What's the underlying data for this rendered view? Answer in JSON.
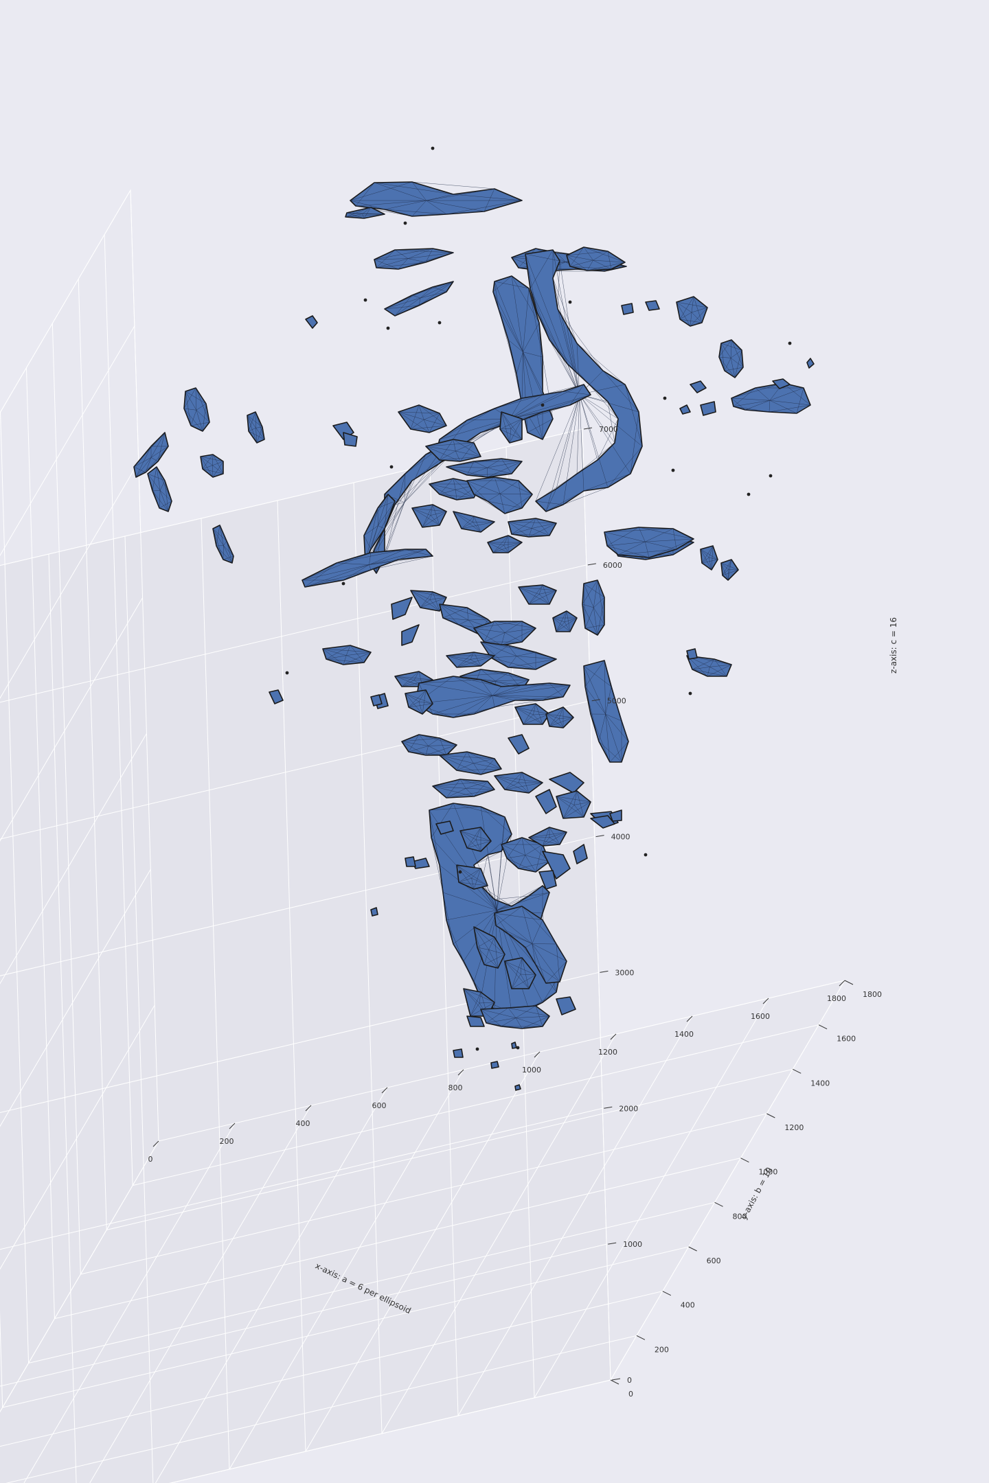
{
  "chart_data": {
    "type": "3d-isosurface",
    "x_axis": {
      "label": "x-axis: a = 6 per ellipsoid",
      "range": [
        0,
        1800
      ],
      "ticks": [
        0,
        200,
        400,
        600,
        800,
        1000,
        1200,
        1400,
        1600,
        1800
      ]
    },
    "y_axis": {
      "label": "y-axis: b = 10",
      "range": [
        0,
        1800
      ],
      "ticks": [
        0,
        200,
        400,
        600,
        800,
        1000,
        1200,
        1400,
        1600,
        1800
      ]
    },
    "z_axis": {
      "label": "z-axis: c = 16",
      "range": [
        0,
        7000
      ],
      "ticks": [
        0,
        1000,
        2000,
        3000,
        4000,
        5000,
        6000,
        7000
      ]
    },
    "grid": true,
    "colors": {
      "surface_face": "#4c72b0",
      "surface_edge": "#1a1a1a",
      "background": "#eaeaf2",
      "pane": "#e5e5ee",
      "grid": "#ffffff"
    }
  }
}
